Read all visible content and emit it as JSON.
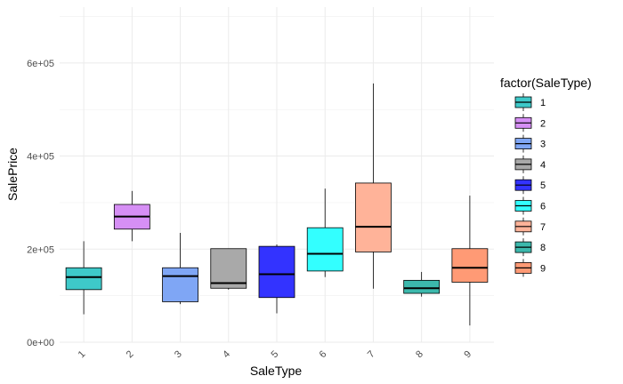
{
  "chart_data": {
    "type": "boxplot",
    "xlabel": "SaleType",
    "ylabel": "SalePrice",
    "ylim": [
      0,
      720000
    ],
    "y_ticks": [
      0,
      200000,
      400000,
      600000
    ],
    "y_tick_labels": [
      "0e+00",
      "2e+05",
      "4e+05",
      "6e+05"
    ],
    "grid": true,
    "legend": {
      "title": "factor(SaleType)",
      "placement": "right"
    },
    "categories": [
      "1",
      "2",
      "3",
      "4",
      "5",
      "6",
      "7",
      "8",
      "9"
    ],
    "boxes": [
      {
        "category": "1",
        "color": "#3EC9C9",
        "whisker_low": 60000,
        "q1": 113000,
        "median": 140000,
        "q3": 160000,
        "whisker_high": 217000
      },
      {
        "category": "2",
        "color": "#D68FF5",
        "whisker_low": 217000,
        "q1": 243000,
        "median": 270000,
        "q3": 296000,
        "whisker_high": 325000
      },
      {
        "category": "3",
        "color": "#7FA6F5",
        "whisker_low": 82000,
        "q1": 87000,
        "median": 142000,
        "q3": 160000,
        "whisker_high": 235000
      },
      {
        "category": "4",
        "color": "#A9A9A9",
        "whisker_low": 113000,
        "q1": 116000,
        "median": 127000,
        "q3": 201000,
        "whisker_high": 201000
      },
      {
        "category": "5",
        "color": "#3333FF",
        "whisker_low": 62000,
        "q1": 96000,
        "median": 146000,
        "q3": 206000,
        "whisker_high": 210000
      },
      {
        "category": "6",
        "color": "#33FFFF",
        "whisker_low": 140000,
        "q1": 153000,
        "median": 190000,
        "q3": 246000,
        "whisker_high": 330000
      },
      {
        "category": "7",
        "color": "#FFB399",
        "whisker_low": 115000,
        "q1": 194000,
        "median": 248000,
        "q3": 342000,
        "whisker_high": 556000
      },
      {
        "category": "8",
        "color": "#3CB8AC",
        "whisker_low": 98000,
        "q1": 105000,
        "median": 116000,
        "q3": 133000,
        "whisker_high": 151000
      },
      {
        "category": "9",
        "color": "#FF9A75",
        "whisker_low": 36000,
        "q1": 129000,
        "median": 160000,
        "q3": 201000,
        "whisker_high": 315000
      }
    ]
  }
}
